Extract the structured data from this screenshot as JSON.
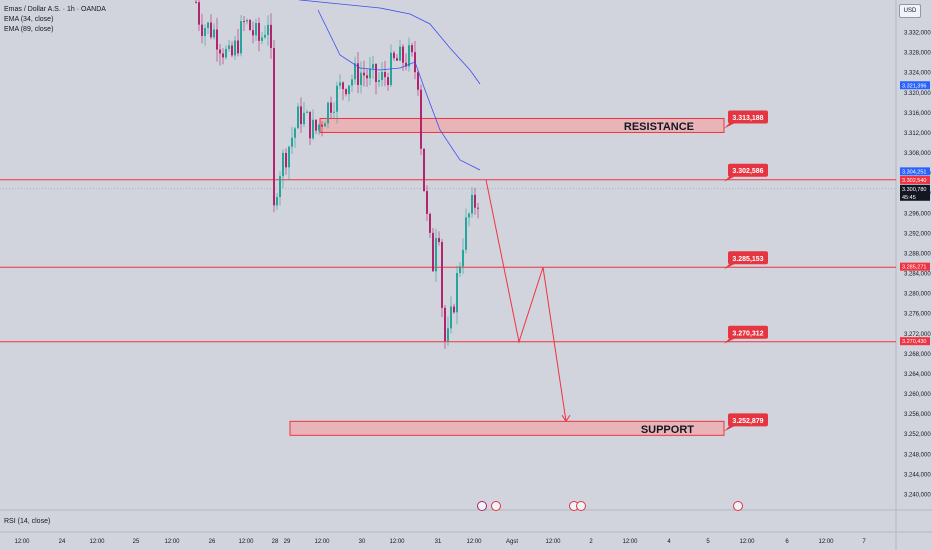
{
  "header": {
    "symbol": "Emas / Dollar A.S. · 1h · OANDA",
    "indicators": [
      "EMA (34, close)",
      "EMA (89, close)"
    ],
    "currency": "USD",
    "rsi_label": "RSI (14, close)"
  },
  "colors": {
    "background": "#d1d4dc",
    "bull": "#2962ff",
    "bear": "#b2246e",
    "bull_body": "#26a69a",
    "ema": "#3d4ef0",
    "level_line": "#ef3340",
    "zone_fill": "#e8b4b8",
    "label_bg": "#e53540",
    "axis_text": "#131722"
  },
  "chart_data": {
    "type": "candlestick",
    "title": "Emas / Dollar A.S. · 1h · OANDA",
    "y_ticks": [
      3240000,
      3244000,
      3248000,
      3252000,
      3256000,
      3260000,
      3264000,
      3268000,
      3272000,
      3276000,
      3280000,
      3284000,
      3288000,
      3292000,
      3296000,
      3300000,
      3304000,
      3308000,
      3312000,
      3316000,
      3320000,
      3324000,
      3328000,
      3332000
    ],
    "y_tick_labels": [
      "3.240,000",
      "3.244,000",
      "3.248,000",
      "3.252,000",
      "3.256,000",
      "3.260,000",
      "3.264,000",
      "3.268,000",
      "3.272,000",
      "3.276,000",
      "3.280,000",
      "3.284,000",
      "3.288,000",
      "3.292,000",
      "3.296,000",
      "3.300,000",
      "3.304,000",
      "3.308,000",
      "3.312,000",
      "3.316,000",
      "3.320,000",
      "3.324,000",
      "3.328,000",
      "3.332,000"
    ],
    "x_labels": [
      "12:00",
      "24",
      "12:00",
      "25",
      "12:00",
      "26",
      "12:00",
      "28",
      "29",
      "12:00",
      "30",
      "12:00",
      "31",
      "12:00",
      "Agst",
      "12:00",
      "2",
      "12:00",
      "4",
      "5",
      "12:00",
      "6",
      "12:00",
      "7",
      "12:00"
    ],
    "levels": [
      {
        "value": "3.313,188",
        "price": 3313188,
        "zone": true,
        "zone_label": "RESISTANCE"
      },
      {
        "value": "3.302,586",
        "price": 3302586,
        "line": true
      },
      {
        "value": "3.285,153",
        "price": 3285153,
        "line": true
      },
      {
        "value": "3.270,312",
        "price": 3270312,
        "line": true
      },
      {
        "value": "3.252,879",
        "price": 3252879,
        "zone": true,
        "zone_label": "SUPPORT"
      }
    ],
    "axis_badges": [
      {
        "value": "3.321,396",
        "price": 3321396,
        "color": "#2962ff"
      },
      {
        "value": "3.304,251",
        "price": 3304251,
        "color": "#2962ff"
      },
      {
        "value": "3.302,540",
        "price": 3302540,
        "color": "#ef3340"
      },
      {
        "value": "3.300,780",
        "price": 3300780,
        "color": "#131722",
        "sub": "45:45"
      },
      {
        "value": "3.285,271",
        "price": 3285271,
        "color": "#ef3340"
      },
      {
        "value": "3.270,430",
        "price": 3270430,
        "color": "#ef3340"
      }
    ],
    "projection_path": [
      [
        3302586,
        "t0"
      ],
      [
        3270312,
        "t1"
      ],
      [
        3285153,
        "t2"
      ],
      [
        3254500,
        "t3"
      ]
    ]
  }
}
